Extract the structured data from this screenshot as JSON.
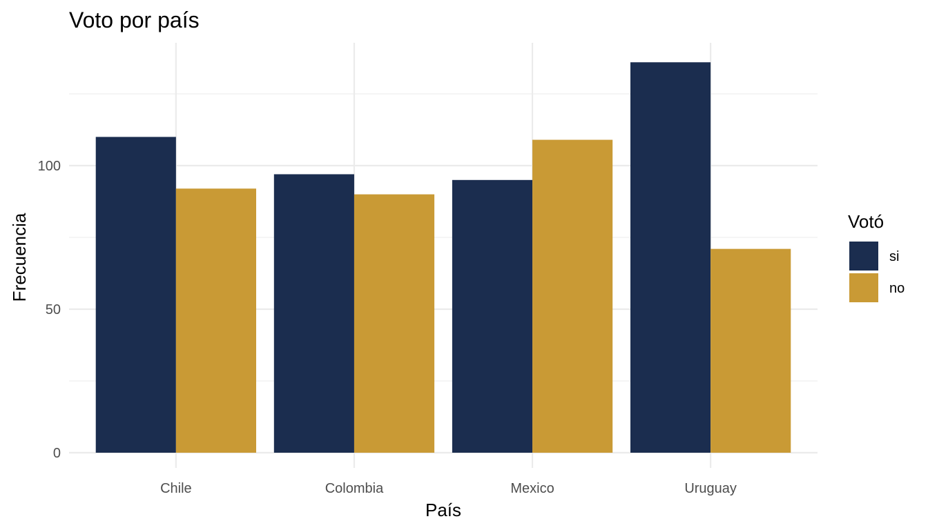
{
  "chart_data": {
    "type": "bar",
    "title": "Voto por país",
    "xlabel": "País",
    "ylabel": "Frecuencia",
    "categories": [
      "Chile",
      "Colombia",
      "Mexico",
      "Uruguay"
    ],
    "series": [
      {
        "name": "si",
        "values": [
          110,
          97,
          95,
          136
        ],
        "color": "#1b2d4f"
      },
      {
        "name": "no",
        "values": [
          92,
          90,
          109,
          71
        ],
        "color": "#c99a35"
      }
    ],
    "yticks": [
      0,
      50,
      100
    ],
    "ylim": [
      0,
      145
    ],
    "grid": true,
    "legend": {
      "title": "Votó",
      "position": "right"
    }
  }
}
